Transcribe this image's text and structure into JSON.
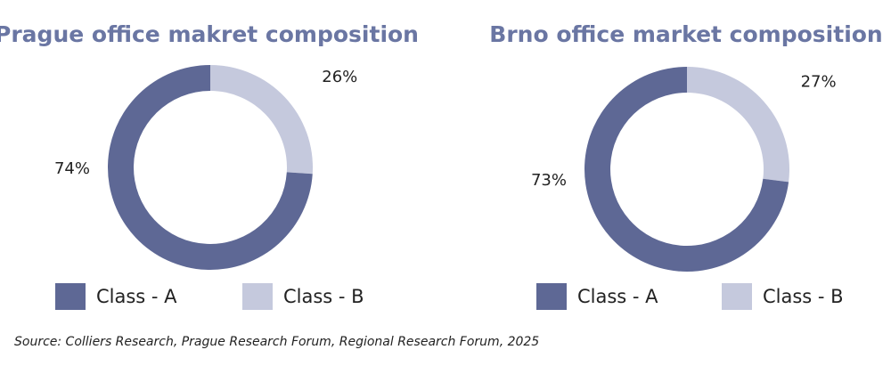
{
  "chart_data": [
    {
      "type": "donut",
      "title": "Prague office makret composition",
      "categories": [
        "Class - A",
        "Class - B"
      ],
      "values": [
        74,
        26
      ],
      "value_labels": [
        "74%",
        "26%"
      ],
      "colors": [
        "#5e6895",
        "#c5c9dd"
      ]
    },
    {
      "type": "donut",
      "title": "Brno office market composition",
      "categories": [
        "Class - A",
        "Class - B"
      ],
      "values": [
        73,
        27
      ],
      "value_labels": [
        "73%",
        "27%"
      ],
      "colors": [
        "#5e6895",
        "#c5c9dd"
      ]
    }
  ],
  "source": "Source: Colliers Research, Prague Research Forum, Regional Research Forum, 2025"
}
